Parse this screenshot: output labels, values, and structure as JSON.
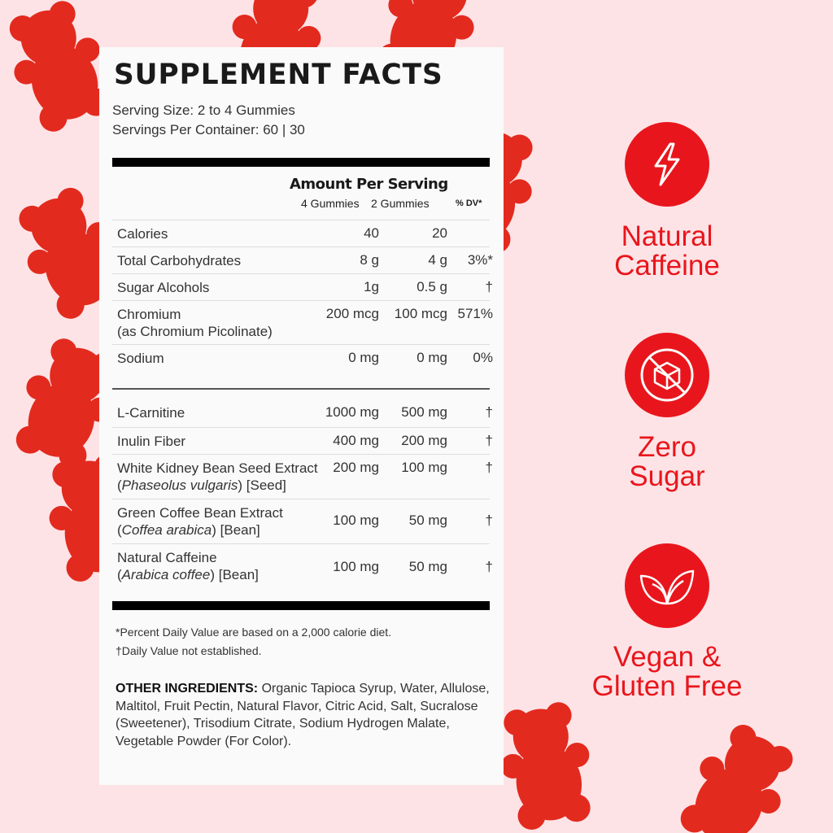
{
  "title": "SUPPLEMENT FACTS",
  "serving_size": "Serving Size: 2 to 4 Gummies",
  "servings_per_container": "Servings Per Container: 60 | 30",
  "amount_per_serving": "Amount Per Serving",
  "col1": "4 Gummies",
  "col2": "2 Gummies",
  "col3": "% DV*",
  "rows": [
    {
      "label": "Calories",
      "sub": "",
      "a": "40",
      "b": "20",
      "dv": ""
    },
    {
      "label": "Total Carbohydrates",
      "sub": "",
      "a": "8 g",
      "b": "4 g",
      "dv": "3%*"
    },
    {
      "label": "Sugar Alcohols",
      "sub": "",
      "a": "1g",
      "b": "0.5 g",
      "dv": "†"
    },
    {
      "label": "Chromium",
      "sub": "(as Chromium Picolinate)",
      "a": "200 mcg",
      "b": "100 mcg",
      "dv": "571%"
    },
    {
      "label": "Sodium",
      "sub": "",
      "a": "0 mg",
      "b": "0 mg",
      "dv": "0%"
    },
    {
      "label": "L-Carnitine",
      "sub": "",
      "a": "1000 mg",
      "b": "500 mg",
      "dv": "†"
    },
    {
      "label": "Inulin Fiber",
      "sub": "",
      "a": "400 mg",
      "b": "200 mg",
      "dv": "†"
    },
    {
      "label": "White Kidney Bean Seed Extract",
      "sub_italic": "Phaseolus vulgaris",
      "sub_rest": ") [Seed]",
      "a": "200 mg",
      "b": "100 mg",
      "dv": "†"
    },
    {
      "label": "Green Coffee Bean Extract",
      "sub_italic": "Coffea arabica",
      "sub_rest": ") [Bean]",
      "a": "100 mg",
      "b": "50 mg",
      "dv": "†"
    },
    {
      "label": "Natural Caffeine",
      "sub_italic": "Arabica coffee",
      "sub_rest": ") [Bean]",
      "a": "100 mg",
      "b": "50 mg",
      "dv": "†"
    }
  ],
  "footnote1": "*Percent Daily Value are based on a 2,000 calorie diet.",
  "footnote2": "†Daily Value not established.",
  "other_label": "OTHER INGREDIENTS:",
  "other_text": " Organic Tapioca Syrup, Water, Allulose, Maltitol, Fruit Pectin, Natural Flavor, Citric Acid, Salt, Sucralose (Sweetener), Trisodium Citrate, Sodium Hydrogen Malate, Vegetable Powder (For Color).",
  "badges": [
    {
      "icon": "lightning-icon",
      "line1": "Natural",
      "line2": "Caffeine"
    },
    {
      "icon": "no-sugar-cube-icon",
      "line1": "Zero",
      "line2": "Sugar"
    },
    {
      "icon": "leaf-icon",
      "line1": "Vegan &",
      "line2": "Gluten Free"
    }
  ],
  "accent": "#e8161c",
  "background": "#fde3e6"
}
